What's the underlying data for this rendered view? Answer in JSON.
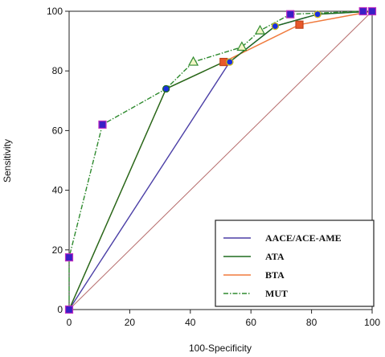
{
  "chart_data": {
    "type": "line",
    "title": "",
    "xlabel": "100-Specificity",
    "ylabel": "Sensitivity",
    "xlim": [
      0,
      100
    ],
    "ylim": [
      0,
      100
    ],
    "xticks": [
      0,
      20,
      40,
      60,
      80,
      100
    ],
    "yticks": [
      0,
      20,
      40,
      60,
      80,
      100
    ],
    "grid": false,
    "legend_position": "bottom-right",
    "reference_line": {
      "x": [
        0,
        100
      ],
      "y": [
        0,
        100
      ],
      "color": "#b56a6a"
    },
    "series": [
      {
        "name": "AACE/ACE-AME",
        "color": "#4b3fa6",
        "marker": "circle",
        "marker_fill": "#1a2ee0",
        "points": [
          [
            0,
            0
          ],
          [
            53,
            83
          ],
          [
            68,
            95
          ],
          [
            82,
            99
          ],
          [
            100,
            100
          ]
        ]
      },
      {
        "name": "ATA",
        "color": "#1f6b1f",
        "marker": "circle",
        "marker_fill": "#1a2ee0",
        "points": [
          [
            0,
            0
          ],
          [
            32,
            74
          ],
          [
            51,
            83
          ],
          [
            53,
            83
          ],
          [
            68,
            95
          ],
          [
            82,
            99
          ],
          [
            100,
            100
          ]
        ]
      },
      {
        "name": "BTA",
        "color": "#f07a3c",
        "marker": "square",
        "marker_fill": "#e8582a",
        "points": [
          [
            0,
            0
          ],
          [
            32,
            74
          ],
          [
            51,
            83
          ],
          [
            76,
            95.5
          ],
          [
            100,
            100
          ]
        ]
      },
      {
        "name": "MUT",
        "color": "#2e8a2e",
        "dash": "dashdot",
        "marker": "mixed",
        "points": [
          [
            0,
            0
          ],
          [
            0,
            17.5
          ],
          [
            11,
            62
          ],
          [
            32,
            74
          ],
          [
            41,
            83
          ],
          [
            57,
            88
          ],
          [
            63,
            93.5
          ],
          [
            73,
            99
          ],
          [
            97,
            100
          ],
          [
            100,
            100
          ]
        ]
      }
    ]
  }
}
